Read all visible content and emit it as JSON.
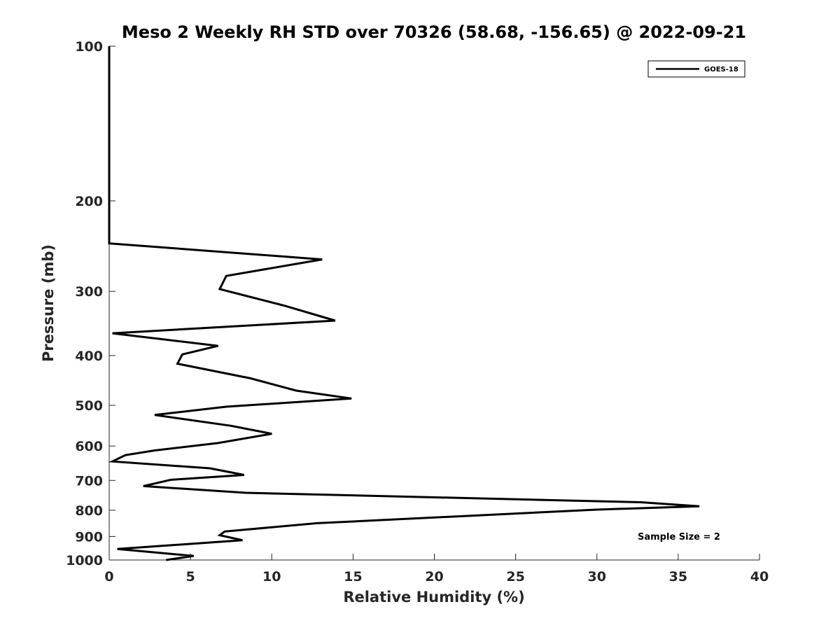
{
  "chart_data": {
    "type": "line",
    "title": "Meso 2 Weekly RH STD over 70326 (58.68, -156.65) @ 2022-09-21",
    "xlabel": "Relative Humidity (%)",
    "ylabel": "Pressure (mb)",
    "xlim": [
      0,
      40
    ],
    "ylim": [
      100,
      1000
    ],
    "yscale": "log",
    "grid": false,
    "xticks": [
      0,
      5,
      10,
      15,
      20,
      25,
      30,
      35,
      40
    ],
    "xtick_labels": [
      "0",
      "5",
      "10",
      "15",
      "20",
      "25",
      "30",
      "35",
      "40"
    ],
    "yticks": [
      100,
      200,
      300,
      400,
      500,
      600,
      700,
      800,
      900,
      1000
    ],
    "ytick_labels": [
      "100",
      "200",
      "300",
      "400",
      "500",
      "600",
      "700",
      "800",
      "900",
      "1000"
    ],
    "legend": {
      "placement": "top-right",
      "entries": [
        "GOES-18"
      ]
    },
    "annotation": "Sample Size = 2",
    "series": [
      {
        "name": "GOES-18",
        "color": "#000000",
        "points": [
          [
            0.0,
            100
          ],
          [
            0.0,
            150
          ],
          [
            0.0,
            200
          ],
          [
            0.0,
            225
          ],
          [
            0.0,
            242
          ],
          [
            13.1,
            260
          ],
          [
            7.2,
            280
          ],
          [
            6.8,
            297
          ],
          [
            10.8,
            320
          ],
          [
            13.9,
            342
          ],
          [
            0.2,
            362
          ],
          [
            6.7,
            383
          ],
          [
            4.5,
            398
          ],
          [
            4.2,
            415
          ],
          [
            8.7,
            443
          ],
          [
            11.5,
            468
          ],
          [
            14.9,
            485
          ],
          [
            7.2,
            503
          ],
          [
            2.8,
            522
          ],
          [
            7.5,
            548
          ],
          [
            10.0,
            568
          ],
          [
            6.7,
            592
          ],
          [
            2.8,
            612
          ],
          [
            1.0,
            625
          ],
          [
            0.2,
            643
          ],
          [
            6.2,
            663
          ],
          [
            8.3,
            683
          ],
          [
            3.8,
            698
          ],
          [
            2.1,
            718
          ],
          [
            8.4,
            740
          ],
          [
            32.7,
            772
          ],
          [
            36.3,
            786
          ],
          [
            29.9,
            798
          ],
          [
            12.8,
            848
          ],
          [
            7.1,
            880
          ],
          [
            6.8,
            895
          ],
          [
            8.2,
            915
          ],
          [
            0.5,
            952
          ],
          [
            5.2,
            982
          ],
          [
            3.5,
            1000
          ]
        ]
      }
    ]
  }
}
